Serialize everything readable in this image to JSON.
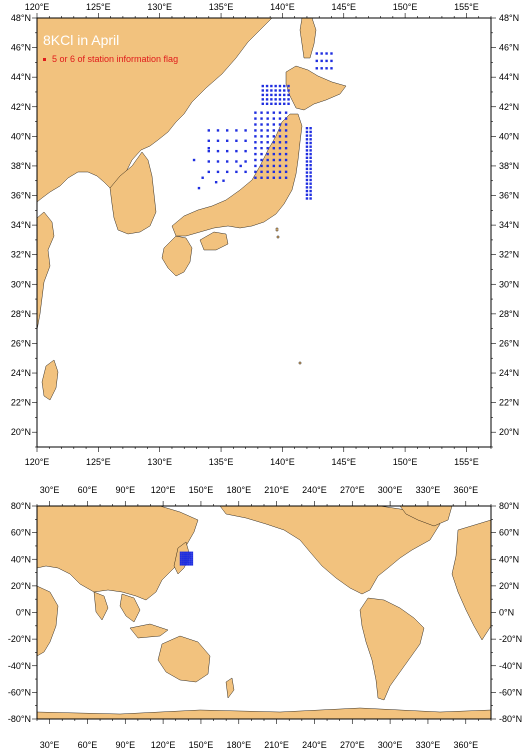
{
  "top_map": {
    "title": "8KCl in April",
    "legend_label": "5 or 6 of station information flag",
    "lon_ticks": [
      "120°E",
      "125°E",
      "130°E",
      "135°E",
      "140°E",
      "145°E",
      "150°E",
      "155°E"
    ],
    "lat_ticks": [
      "20°N",
      "22°N",
      "24°N",
      "26°N",
      "28°N",
      "30°N",
      "32°N",
      "34°N",
      "36°N",
      "38°N",
      "40°N",
      "42°N",
      "44°N",
      "46°N",
      "48°N"
    ],
    "lon_range": [
      120,
      157
    ],
    "lat_range": [
      19,
      48
    ]
  },
  "bottom_map": {
    "lon_ticks": [
      "30°E",
      "60°E",
      "90°E",
      "120°E",
      "150°E",
      "180°E",
      "210°E",
      "240°E",
      "270°E",
      "300°E",
      "330°E",
      "360°E"
    ],
    "lat_ticks": [
      "80°N",
      "60°N",
      "40°N",
      "20°N",
      "0°N",
      "-20°N",
      "-40°N",
      "-60°N",
      "-80°N"
    ],
    "lon_range": [
      20,
      380
    ],
    "lat_range": [
      -80,
      80
    ]
  },
  "colors": {
    "land": "#f2c27e",
    "ocean": "#ffffff",
    "station": "#1f2ee0",
    "flag": "#e01a1a",
    "frame": "#000000"
  }
}
